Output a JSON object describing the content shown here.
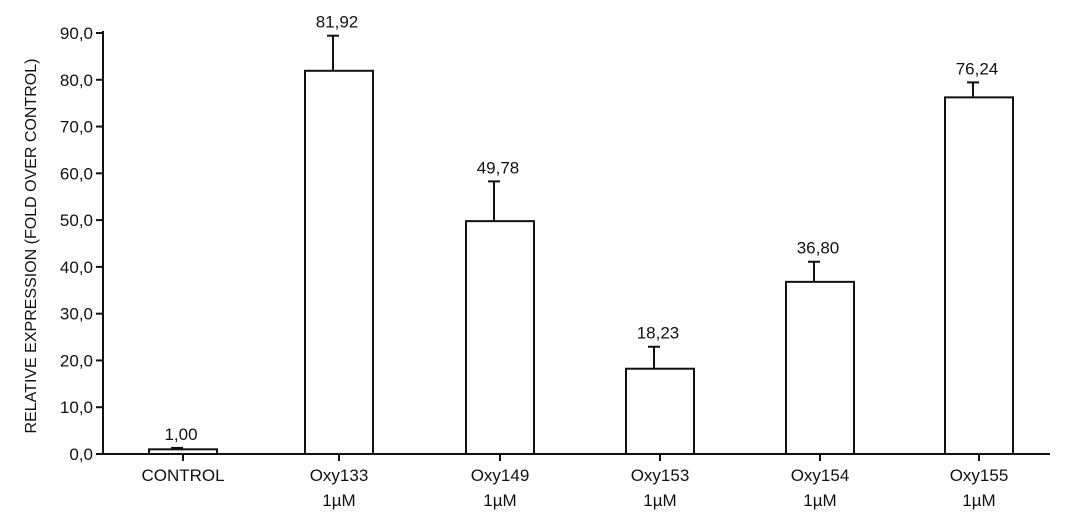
{
  "chart_data": {
    "type": "bar",
    "title": "",
    "xlabel": "",
    "ylabel": "RELATIVE EXPRESSION (FOLD OVER CONTROL)",
    "ylim": [
      0,
      90
    ],
    "yticks": [
      "0,0",
      "10,0",
      "20,0",
      "30,0",
      "40,0",
      "50,0",
      "60,0",
      "70,0",
      "80,0",
      "90,0"
    ],
    "categories": [
      {
        "line1": "CONTROL",
        "line2": ""
      },
      {
        "line1": "Oxy133",
        "line2": "1µM"
      },
      {
        "line1": "Oxy149",
        "line2": "1µM"
      },
      {
        "line1": "Oxy153",
        "line2": "1µM"
      },
      {
        "line1": "Oxy154",
        "line2": "1µM"
      },
      {
        "line1": "Oxy155",
        "line2": "1µM"
      }
    ],
    "values": [
      1.0,
      81.92,
      49.78,
      18.23,
      36.8,
      76.24
    ],
    "value_labels": [
      "1,00",
      "81,92",
      "49,78",
      "18,23",
      "36,80",
      "76,24"
    ],
    "error_upper": [
      0.3,
      7.5,
      8.5,
      4.7,
      4.3,
      3.2
    ],
    "grid": false,
    "legend": "none",
    "colors": {
      "bar_fill": "#ffffff",
      "stroke": "#111111"
    }
  }
}
